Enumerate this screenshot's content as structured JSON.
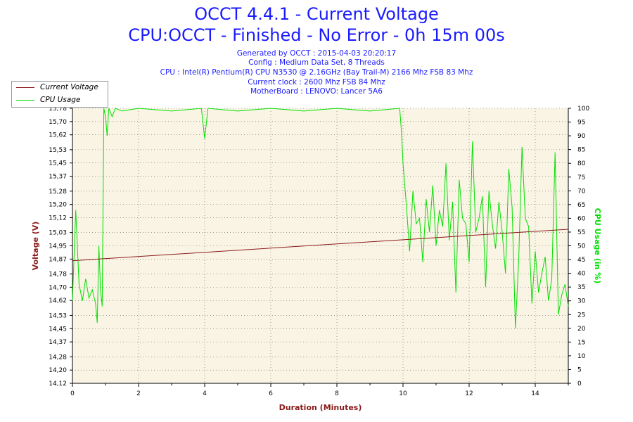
{
  "header": {
    "title_line1": "OCCT 4.4.1 - Current Voltage",
    "title_line2": "CPU:OCCT - Finished - No Error - 0h 15m 00s",
    "info": [
      "Generated by OCCT : 2015-04-03 20:20:17",
      "Config : Medium Data Set, 8 Threads",
      "CPU : Intel(R) Pentium(R) CPU N3530 @ 2.16GHz (Bay Trail-M) 2166 Mhz FSB 83 Mhz",
      "Current clock : 2600 Mhz FSB 84 Mhz",
      "MotherBoard : LENOVO: Lancer 5A6"
    ]
  },
  "colors": {
    "title": "#1a1aff",
    "plot_background": "#faf4e4",
    "voltage": "#8b1a1a",
    "cpu": "#00e000",
    "grid": "#000000"
  },
  "chart_data": {
    "type": "line",
    "title": "OCCT 4.4.1 - Current Voltage",
    "xlabel": "Duration (Minutes)",
    "ylabel": "Voltage (V)",
    "y2label": "CPU Usage (in %)",
    "xlim": [
      0,
      15
    ],
    "ylim": [
      14.12,
      15.78
    ],
    "y2lim": [
      0,
      100
    ],
    "x_ticks": [
      "0",
      "2",
      "4",
      "6",
      "8",
      "10",
      "12",
      "14"
    ],
    "x_tick_values": [
      0,
      2,
      4,
      6,
      8,
      10,
      12,
      14
    ],
    "y_ticks": [
      "14,12",
      "14,20",
      "14,28",
      "14,37",
      "14,45",
      "14,53",
      "14,62",
      "14,70",
      "14,78",
      "14,87",
      "14,95",
      "15,03",
      "15,12",
      "15,20",
      "15,28",
      "15,37",
      "15,45",
      "15,53",
      "15,62",
      "15,70",
      "15,78"
    ],
    "y_tick_values": [
      14.12,
      14.2,
      14.28,
      14.37,
      14.45,
      14.53,
      14.62,
      14.7,
      14.78,
      14.87,
      14.95,
      15.03,
      15.12,
      15.2,
      15.28,
      15.37,
      15.45,
      15.53,
      15.62,
      15.7,
      15.78
    ],
    "y2_ticks": [
      "0",
      "5",
      "10",
      "15",
      "20",
      "25",
      "30",
      "35",
      "40",
      "45",
      "50",
      "55",
      "60",
      "65",
      "70",
      "75",
      "80",
      "85",
      "90",
      "95",
      "100"
    ],
    "y2_tick_values": [
      0,
      5,
      10,
      15,
      20,
      25,
      30,
      35,
      40,
      45,
      50,
      55,
      60,
      65,
      70,
      75,
      80,
      85,
      90,
      95,
      100
    ],
    "grid": "dashed",
    "legend_position": "top-left",
    "series": [
      {
        "name": "Current Voltage",
        "axis": "left",
        "x": [
          0,
          15
        ],
        "values": [
          14.86,
          15.05
        ]
      },
      {
        "name": "CPU Usage",
        "axis": "right",
        "x": [
          0,
          0.1,
          0.2,
          0.3,
          0.4,
          0.5,
          0.6,
          0.7,
          0.75,
          0.8,
          0.85,
          0.9,
          0.95,
          1.0,
          1.05,
          1.1,
          1.2,
          1.3,
          1.5,
          2,
          3,
          3.9,
          4.0,
          4.1,
          5,
          6,
          7,
          8,
          9,
          9.9,
          9.95,
          10.0,
          10.1,
          10.2,
          10.3,
          10.4,
          10.5,
          10.6,
          10.7,
          10.8,
          10.9,
          11.0,
          11.1,
          11.2,
          11.3,
          11.4,
          11.5,
          11.6,
          11.7,
          11.8,
          11.9,
          12.0,
          12.1,
          12.2,
          12.3,
          12.4,
          12.5,
          12.6,
          12.7,
          12.8,
          12.9,
          13.0,
          13.1,
          13.2,
          13.3,
          13.4,
          13.5,
          13.6,
          13.7,
          13.8,
          13.9,
          14.0,
          14.1,
          14.2,
          14.3,
          14.4,
          14.5,
          14.6,
          14.7,
          14.8,
          14.9,
          15.0
        ],
        "values": [
          30,
          63,
          36,
          30,
          38,
          31,
          34,
          29,
          22,
          50,
          34,
          28,
          100,
          97,
          90,
          100,
          97,
          100,
          99,
          100,
          99,
          100,
          89,
          100,
          99,
          100,
          99,
          100,
          99,
          100,
          92,
          80,
          65,
          48,
          70,
          58,
          60,
          44,
          67,
          55,
          72,
          50,
          63,
          57,
          80,
          52,
          66,
          33,
          74,
          60,
          58,
          44,
          88,
          55,
          60,
          68,
          35,
          70,
          58,
          49,
          66,
          55,
          40,
          78,
          64,
          20,
          45,
          86,
          60,
          57,
          29,
          48,
          33,
          40,
          46,
          30,
          38,
          84,
          25,
          32,
          36,
          28
        ]
      }
    ]
  }
}
